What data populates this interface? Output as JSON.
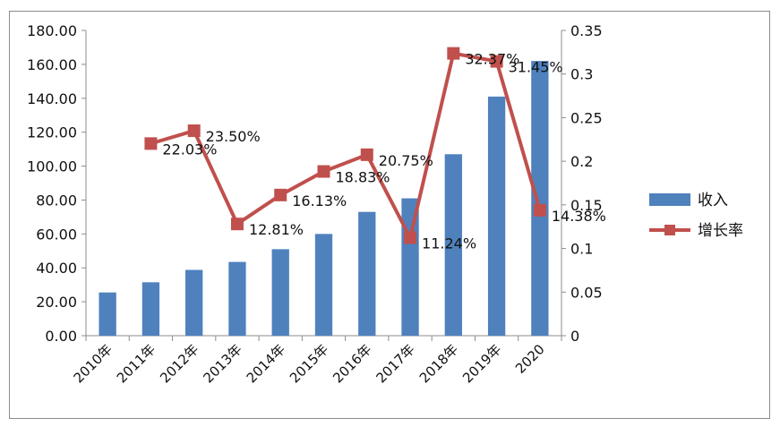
{
  "chart_data": {
    "type": "bar+line",
    "categories": [
      "2010年",
      "2011年",
      "2012年",
      "2013年",
      "2014年",
      "2015年",
      "2016年",
      "2017年",
      "2018年",
      "2019年",
      "2020"
    ],
    "series": [
      {
        "name": "收入",
        "type": "bar",
        "axis": "left",
        "color": "#4F81BD",
        "values": [
          25.5,
          31.5,
          38.8,
          43.5,
          51.0,
          60.0,
          73.0,
          81.0,
          107.0,
          141.0,
          162.0
        ]
      },
      {
        "name": "增长率",
        "type": "line",
        "axis": "right",
        "color": "#C0504D",
        "values": [
          null,
          0.2203,
          0.235,
          0.1281,
          0.1613,
          0.1883,
          0.2075,
          0.1124,
          0.3237,
          0.3145,
          0.1438
        ],
        "labels": [
          "",
          "22.03%",
          "23.50%",
          "12.81%",
          "16.13%",
          "18.83%",
          "20.75%",
          "11.24%",
          "32.37%",
          "31.45%",
          "14.38%"
        ]
      }
    ],
    "y_left": {
      "ylim": [
        0,
        180
      ],
      "ticks": [
        "0.00",
        "20.00",
        "40.00",
        "60.00",
        "80.00",
        "100.00",
        "120.00",
        "140.00",
        "160.00",
        "180.00"
      ]
    },
    "y_right": {
      "ylim": [
        0,
        0.35
      ],
      "ticks": [
        "0",
        "0.05",
        "0.1",
        "0.15",
        "0.2",
        "0.25",
        "0.3",
        "0.35"
      ]
    },
    "grid": false,
    "legend_position": "right"
  }
}
